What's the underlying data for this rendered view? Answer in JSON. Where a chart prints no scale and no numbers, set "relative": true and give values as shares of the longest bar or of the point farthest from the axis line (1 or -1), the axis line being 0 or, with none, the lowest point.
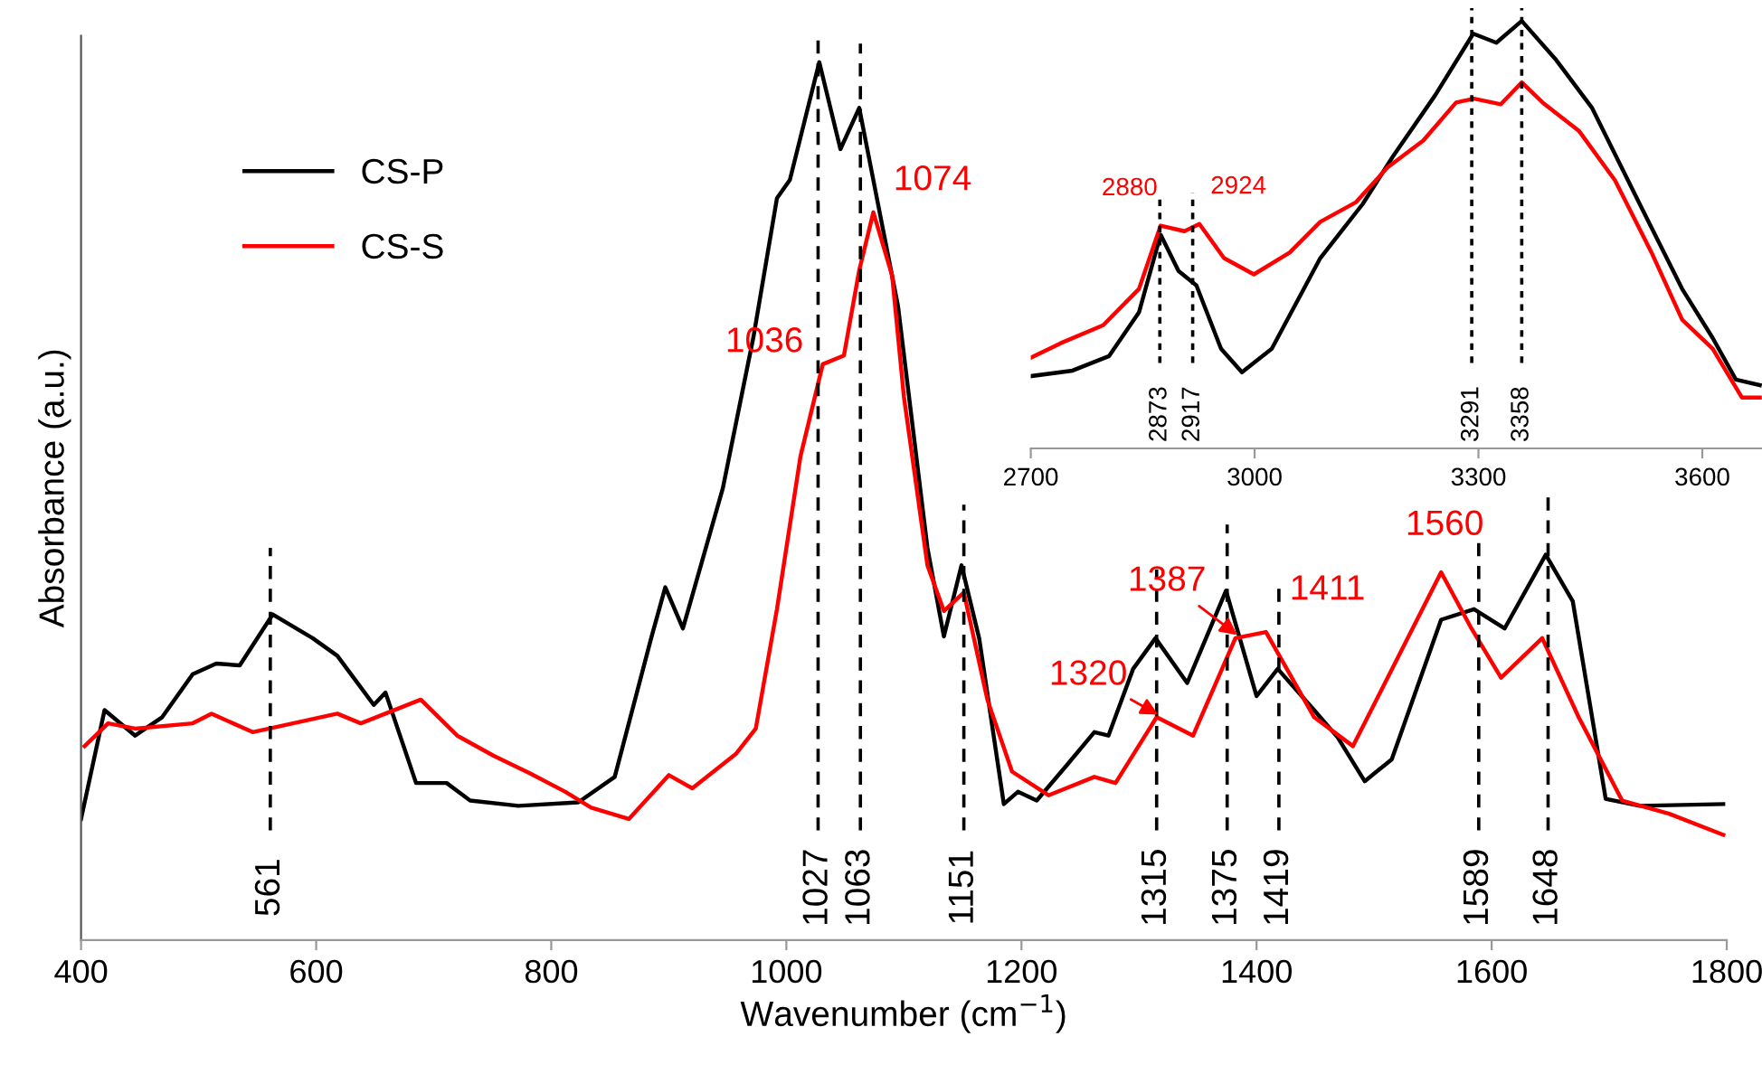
{
  "chart_data": [
    {
      "type": "line",
      "relative": true,
      "xlabel": "Wavenumber (cm$^{−1}$)",
      "ylabel": "Absorbance (a.u.)",
      "xlim": [
        400,
        1800
      ],
      "xticks": [
        400,
        600,
        800,
        1000,
        1200,
        1400,
        1600,
        1800
      ],
      "legend": "top left",
      "line_style": "solid",
      "series": [
        {
          "name": "CS-P",
          "color": "#000000",
          "x": [
            400,
            420,
            446,
            469,
            495,
            515,
            535,
            563,
            597,
            618,
            649,
            659,
            685,
            711,
            731,
            772,
            823,
            854,
            885,
            897,
            912,
            946,
            972,
            992,
            1003,
            1028,
            1046,
            1062,
            1095,
            1120,
            1134,
            1149,
            1164,
            1185,
            1197,
            1213,
            1239,
            1262,
            1274,
            1295,
            1314,
            1341,
            1374,
            1400,
            1418,
            1449,
            1469,
            1492,
            1515,
            1557,
            1585,
            1611,
            1646,
            1669,
            1697,
            1726,
            1797
          ],
          "values": [
            0.138,
            0.262,
            0.233,
            0.254,
            0.303,
            0.315,
            0.313,
            0.371,
            0.344,
            0.324,
            0.268,
            0.282,
            0.179,
            0.179,
            0.159,
            0.153,
            0.157,
            0.186,
            0.344,
            0.402,
            0.355,
            0.515,
            0.687,
            0.845,
            0.866,
            1.0,
            0.901,
            0.948,
            0.722,
            0.447,
            0.346,
            0.427,
            0.344,
            0.155,
            0.169,
            0.159,
            0.2,
            0.237,
            0.233,
            0.309,
            0.344,
            0.293,
            0.398,
            0.278,
            0.309,
            0.262,
            0.231,
            0.181,
            0.206,
            0.365,
            0.377,
            0.355,
            0.439,
            0.386,
            0.161,
            0.153,
            0.155
          ]
        },
        {
          "name": "CS-S",
          "color": "#ff0000",
          "x": [
            403,
            423,
            446,
            495,
            511,
            546,
            618,
            638,
            689,
            720,
            751,
            782,
            812,
            834,
            866,
            900,
            920,
            957,
            974,
            992,
            1012,
            1031,
            1049,
            1062,
            1074,
            1090,
            1100,
            1120,
            1134,
            1151,
            1171,
            1192,
            1223,
            1262,
            1280,
            1315,
            1346,
            1382,
            1408,
            1449,
            1482,
            1557,
            1582,
            1608,
            1643,
            1674,
            1711,
            1751,
            1797
          ],
          "values": [
            0.221,
            0.247,
            0.241,
            0.247,
            0.258,
            0.237,
            0.258,
            0.247,
            0.274,
            0.233,
            0.21,
            0.19,
            0.169,
            0.151,
            0.138,
            0.188,
            0.173,
            0.212,
            0.241,
            0.377,
            0.551,
            0.656,
            0.666,
            0.763,
            0.829,
            0.757,
            0.619,
            0.427,
            0.375,
            0.396,
            0.274,
            0.192,
            0.165,
            0.186,
            0.179,
            0.254,
            0.233,
            0.344,
            0.351,
            0.254,
            0.221,
            0.419,
            0.357,
            0.299,
            0.344,
            0.254,
            0.159,
            0.144,
            0.12
          ]
        }
      ],
      "ref_lines": [
        {
          "axis": "x",
          "value": 561,
          "label": "561",
          "color": "#000000",
          "line_style": "dashed"
        },
        {
          "axis": "x",
          "value": 1027,
          "label": "1027",
          "color": "#000000",
          "line_style": "dashed"
        },
        {
          "axis": "x",
          "value": 1063,
          "label": "1063",
          "color": "#000000",
          "line_style": "dashed"
        },
        {
          "axis": "x",
          "value": 1151,
          "label": "1151",
          "color": "#000000",
          "line_style": "dashed"
        },
        {
          "axis": "x",
          "value": 1315,
          "label": "1315",
          "color": "#000000",
          "line_style": "dashed"
        },
        {
          "axis": "x",
          "value": 1375,
          "label": "1375",
          "color": "#000000",
          "line_style": "dashed"
        },
        {
          "axis": "x",
          "value": 1419,
          "label": "1419",
          "color": "#000000",
          "line_style": "dashed"
        },
        {
          "axis": "x",
          "value": 1589,
          "label": "1589",
          "color": "#000000",
          "line_style": "dashed"
        },
        {
          "axis": "x",
          "value": 1648,
          "label": "1648",
          "color": "#000000",
          "line_style": "dashed"
        }
      ],
      "annotations": [
        {
          "text": "1036",
          "x": 1036,
          "y": 0.656
        },
        {
          "text": "1074",
          "x": 1074,
          "y": 0.829
        },
        {
          "text": "1320",
          "x": 1320,
          "y": 0.254
        },
        {
          "text": "1387",
          "x": 1387,
          "y": 0.344
        },
        {
          "text": "1411",
          "x": 1411,
          "y": 0.351
        },
        {
          "text": "1560",
          "x": 1560,
          "y": 0.419
        }
      ]
    },
    {
      "type": "line",
      "relative": true,
      "xlim": [
        2700,
        3680
      ],
      "xticks": [
        2700,
        3000,
        3300,
        3600
      ],
      "line_style": "solid",
      "series": [
        {
          "color": "#000000",
          "x": [
            2700,
            2756,
            2805,
            2845,
            2874,
            2898,
            2922,
            2955,
            2983,
            3023,
            3088,
            3145,
            3185,
            3242,
            3293,
            3324,
            3358,
            3403,
            3452,
            3516,
            3573,
            3614,
            3645,
            3677
          ],
          "values": [
            0.169,
            0.182,
            0.216,
            0.318,
            0.5,
            0.415,
            0.381,
            0.233,
            0.178,
            0.233,
            0.445,
            0.572,
            0.682,
            0.826,
            0.97,
            0.949,
            1.0,
            0.911,
            0.797,
            0.572,
            0.373,
            0.258,
            0.161,
            0.148
          ]
        },
        {
          "color": "#ff0000",
          "x": [
            2700,
            2740,
            2797,
            2845,
            2874,
            2906,
            2926,
            2959,
            2999,
            3047,
            3088,
            3136,
            3178,
            3226,
            3270,
            3294,
            3330,
            3358,
            3386,
            3435,
            3483,
            3532,
            3573,
            3614,
            3653,
            3677
          ],
          "values": [
            0.212,
            0.246,
            0.288,
            0.373,
            0.521,
            0.508,
            0.525,
            0.445,
            0.407,
            0.458,
            0.53,
            0.576,
            0.657,
            0.72,
            0.809,
            0.818,
            0.805,
            0.856,
            0.809,
            0.742,
            0.627,
            0.458,
            0.301,
            0.233,
            0.119,
            0.119
          ]
        }
      ],
      "ref_lines": [
        {
          "axis": "x",
          "value": 2873,
          "label": "2873",
          "color": "#000000",
          "line_style": "dotted"
        },
        {
          "axis": "x",
          "value": 2917,
          "label": "2917",
          "color": "#000000",
          "line_style": "dotted"
        },
        {
          "axis": "x",
          "value": 3291,
          "label": "3291",
          "color": "#000000",
          "line_style": "dotted"
        },
        {
          "axis": "x",
          "value": 3358,
          "label": "3358",
          "color": "#000000",
          "line_style": "dotted"
        }
      ],
      "annotations": [
        {
          "text": "2880",
          "x": 2880,
          "y": 0.521
        },
        {
          "text": "2924",
          "x": 2924,
          "y": 0.525
        }
      ]
    }
  ]
}
